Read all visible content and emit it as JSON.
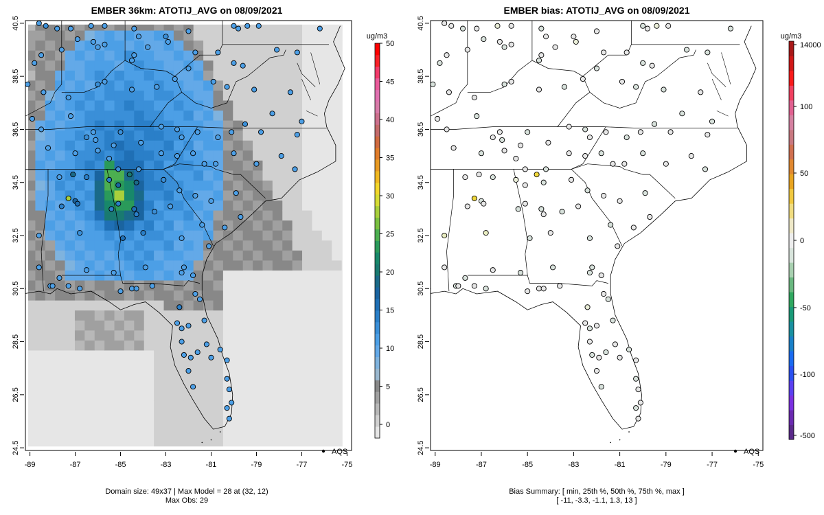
{
  "left_panel": {
    "title": "EMBER 36km: ATOTIJ_AVG on 08/09/2021",
    "footer_line1": "Domain size: 49x37 | Max Model = 28 at (32, 12)",
    "footer_line2": "Max Obs: 29",
    "legend_label": "AQS",
    "colorbar_unit": "ug/m3",
    "colorbar_ticks": [
      "0",
      "5",
      "10",
      "15",
      "20",
      "25",
      "30",
      "35",
      "40",
      "45",
      "50"
    ],
    "colorbar_ticks_values": [
      0,
      5,
      10,
      15,
      20,
      25,
      30,
      35,
      40,
      45,
      50
    ],
    "colorbar_colors": [
      "#e6e6e6",
      "#d0d0d0",
      "#b8b8b8",
      "#a0a0a0",
      "#888888",
      "#9ab8cf",
      "#7fb3de",
      "#63a9e8",
      "#4c9fe6",
      "#3a8fd8",
      "#2a7fc8",
      "#1f6fb5",
      "#1a64a0",
      "#1a6a88",
      "#197a70",
      "#18886a",
      "#2a9a5a",
      "#4caf50",
      "#7ac040",
      "#a8cf3c",
      "#d6dc34",
      "#f2d62a",
      "#f0b820",
      "#e89a22",
      "#e07c2a",
      "#d06a40",
      "#c46a6a",
      "#cc6f8c",
      "#d87aa8",
      "#e070b0",
      "#ea5a9a",
      "#f23a6a",
      "#f82028",
      "#ff0000"
    ],
    "x_ticks": [
      "-89",
      "-87",
      "-85",
      "-83",
      "-81",
      "-79",
      "-77",
      "-75"
    ],
    "y_ticks": [
      "40.5",
      "38.5",
      "36.5",
      "34.5",
      "32.5",
      "30.5",
      "28.5",
      "26.5",
      "24.5"
    ]
  },
  "right_panel": {
    "title": "EMBER bias: ATOTIJ_AVG on 08/09/2021",
    "footer_line1": "Bias Summary: [ min, 25th %, 50th %, 75th %, max ]",
    "footer_line2": "[ -11,   -3.3,   -1.1,   1.3,   13 ]",
    "legend_label": "AQS",
    "colorbar_unit": "ug/m3",
    "colorbar_ticks": [
      "-500",
      "-100",
      "-50",
      "0",
      "50",
      "100",
      "14000"
    ],
    "colorbar_colors": [
      "#5a2a8a",
      "#6a2ab0",
      "#7a30e0",
      "#5a40f0",
      "#2a50f0",
      "#1a6af0",
      "#1a80c8",
      "#1a90a0",
      "#1a9a78",
      "#30a860",
      "#6ab880",
      "#a8d0b0",
      "#d8e4dc",
      "#ededed",
      "#eee8c8",
      "#f0dc80",
      "#f0c840",
      "#e8a420",
      "#e08830",
      "#d07050",
      "#c87880",
      "#d480a0",
      "#e06090",
      "#f04060",
      "#f81a1a",
      "#d01818",
      "#a81818"
    ],
    "x_ticks": [
      "-89",
      "-87",
      "-85",
      "-83",
      "-81",
      "-79",
      "-77",
      "-75"
    ],
    "y_ticks": [
      "40.5",
      "38.5",
      "36.5",
      "34.5",
      "32.5",
      "30.5",
      "28.5",
      "26.5",
      "24.5"
    ]
  },
  "chart_data": {
    "type": "heatmap",
    "panels": [
      {
        "name": "EMBER 36km: ATOTIJ_AVG on 08/09/2021",
        "xlim": [
          -89.2,
          -74.8
        ],
        "ylim": [
          24.4,
          40.6
        ],
        "colorbar_range": [
          0,
          50
        ],
        "units": "ug/m3"
      },
      {
        "name": "EMBER bias: ATOTIJ_AVG on 08/09/2021",
        "xlim": [
          -89.2,
          -74.8
        ],
        "ylim": [
          24.4,
          40.6
        ],
        "units": "ug/m3",
        "bias_summary": {
          "min": -11,
          "p25": -3.3,
          "p50": -1.1,
          "p75": 1.3,
          "max": 13
        }
      }
    ],
    "domain_size": "49x37",
    "max_model": 28,
    "max_model_cell": [
      32,
      12
    ],
    "max_obs": 29,
    "sites": [
      [
        -88.6,
        40.5,
        12,
        -1
      ],
      [
        -88.3,
        40.4,
        14,
        1
      ],
      [
        -87.8,
        40.3,
        13,
        -2
      ],
      [
        -87.2,
        40.3,
        12,
        -1
      ],
      [
        -86.3,
        40.4,
        13,
        2
      ],
      [
        -85.7,
        40.4,
        12,
        -1
      ],
      [
        -84.4,
        40.3,
        13,
        -2
      ],
      [
        -84.2,
        40.0,
        12,
        -1
      ],
      [
        -83.0,
        40.0,
        14,
        1
      ],
      [
        -82.0,
        40.2,
        13,
        -1
      ],
      [
        -80.0,
        40.4,
        13,
        -2
      ],
      [
        -79.8,
        40.3,
        12,
        -1
      ],
      [
        -79.4,
        40.4,
        12,
        2
      ],
      [
        -78.9,
        40.4,
        13,
        1
      ],
      [
        -76.2,
        40.3,
        13,
        -3
      ],
      [
        -88.5,
        39.3,
        12,
        1
      ],
      [
        -88.8,
        39.0,
        12,
        -2
      ],
      [
        -87.6,
        39.5,
        13,
        -1
      ],
      [
        -86.9,
        39.9,
        12,
        -2
      ],
      [
        -86.2,
        39.8,
        13,
        -1
      ],
      [
        -86.0,
        39.6,
        12,
        -3
      ],
      [
        -85.7,
        39.7,
        13,
        -1
      ],
      [
        -84.5,
        39.1,
        12,
        -2
      ],
      [
        -84.4,
        39.3,
        13,
        -1
      ],
      [
        -83.8,
        39.6,
        12,
        -1
      ],
      [
        -82.9,
        39.8,
        13,
        2
      ],
      [
        -82.0,
        38.8,
        12,
        -2
      ],
      [
        -81.7,
        39.4,
        13,
        -1
      ],
      [
        -80.7,
        39.4,
        12,
        -1
      ],
      [
        -80.0,
        39.0,
        13,
        -2
      ],
      [
        -79.6,
        38.9,
        12,
        -1
      ],
      [
        -78.1,
        39.5,
        13,
        -3
      ],
      [
        -77.2,
        39.4,
        12,
        -2
      ],
      [
        -89.1,
        38.2,
        12,
        -2
      ],
      [
        -88.4,
        37.9,
        13,
        -1
      ],
      [
        -87.3,
        37.7,
        12,
        -1
      ],
      [
        -86.0,
        38.2,
        14,
        -2
      ],
      [
        -85.7,
        38.3,
        13,
        -1
      ],
      [
        -84.5,
        38.0,
        12,
        -1
      ],
      [
        -83.4,
        38.1,
        13,
        -2
      ],
      [
        -82.6,
        38.4,
        12,
        -1
      ],
      [
        -80.9,
        38.3,
        13,
        -1
      ],
      [
        -80.3,
        38.1,
        12,
        -3
      ],
      [
        -79.1,
        38.0,
        13,
        -2
      ],
      [
        -77.5,
        37.9,
        12,
        -1
      ],
      [
        -88.9,
        36.9,
        12,
        1
      ],
      [
        -88.5,
        36.5,
        13,
        -1
      ],
      [
        -87.2,
        37.0,
        12,
        -2
      ],
      [
        -86.5,
        36.2,
        14,
        -1
      ],
      [
        -86.1,
        36.1,
        13,
        -2
      ],
      [
        -86.2,
        36.4,
        13,
        -1
      ],
      [
        -85.3,
        35.9,
        12,
        -1
      ],
      [
        -85.0,
        36.4,
        14,
        -2
      ],
      [
        -84.1,
        36.0,
        13,
        -1
      ],
      [
        -83.2,
        36.6,
        12,
        -1
      ],
      [
        -82.5,
        36.5,
        13,
        -2
      ],
      [
        -82.3,
        36.2,
        12,
        -1
      ],
      [
        -81.6,
        36.4,
        13,
        -1
      ],
      [
        -80.7,
        36.2,
        12,
        -2
      ],
      [
        -80.1,
        36.4,
        13,
        -1
      ],
      [
        -79.5,
        36.7,
        14,
        -2
      ],
      [
        -78.8,
        36.4,
        13,
        -1
      ],
      [
        -78.3,
        37.1,
        12,
        -3
      ],
      [
        -77.0,
        36.8,
        13,
        -2
      ],
      [
        -77.2,
        36.3,
        12,
        -1
      ],
      [
        -88.2,
        35.8,
        13,
        -1
      ],
      [
        -87.0,
        35.6,
        12,
        -2
      ],
      [
        -86.0,
        35.7,
        13,
        -1
      ],
      [
        -85.5,
        35.4,
        12,
        -1
      ],
      [
        -85.1,
        35.0,
        14,
        -1
      ],
      [
        -84.2,
        35.0,
        13,
        -2
      ],
      [
        -83.2,
        35.6,
        12,
        -1
      ],
      [
        -82.5,
        35.5,
        13,
        -1
      ],
      [
        -81.8,
        35.6,
        12,
        -2
      ],
      [
        -81.3,
        35.2,
        13,
        -1
      ],
      [
        -80.8,
        35.2,
        12,
        -1
      ],
      [
        -80.0,
        35.6,
        13,
        -2
      ],
      [
        -79.0,
        35.2,
        12,
        -1
      ],
      [
        -77.9,
        35.5,
        13,
        -1
      ],
      [
        -77.3,
        35.0,
        12,
        -2
      ],
      [
        -87.7,
        34.7,
        13,
        1
      ],
      [
        -87.1,
        34.8,
        20,
        -1
      ],
      [
        -86.5,
        34.7,
        15,
        -2
      ],
      [
        -85.5,
        34.6,
        16,
        2
      ],
      [
        -85.1,
        34.4,
        18,
        1
      ],
      [
        -84.6,
        34.8,
        22,
        13
      ],
      [
        -84.3,
        34.5,
        20,
        -2
      ],
      [
        -83.1,
        34.6,
        14,
        -1
      ],
      [
        -82.4,
        34.2,
        13,
        -2
      ],
      [
        -81.7,
        34.0,
        12,
        -1
      ],
      [
        -81.0,
        33.8,
        13,
        -1
      ],
      [
        -79.9,
        34.1,
        12,
        -2
      ],
      [
        -79.7,
        33.2,
        13,
        -1
      ],
      [
        -87.6,
        33.6,
        16,
        -1
      ],
      [
        -87.3,
        33.9,
        29,
        10
      ],
      [
        -87.0,
        33.8,
        18,
        -3
      ],
      [
        -86.9,
        33.7,
        17,
        -1
      ],
      [
        -85.4,
        33.5,
        16,
        -2
      ],
      [
        -85.1,
        33.7,
        15,
        -1
      ],
      [
        -84.4,
        33.5,
        17,
        -2
      ],
      [
        -84.3,
        33.3,
        16,
        -1
      ],
      [
        -83.5,
        33.4,
        14,
        -3
      ],
      [
        -82.8,
        33.6,
        13,
        -1
      ],
      [
        -81.4,
        32.9,
        12,
        -2
      ],
      [
        -80.4,
        32.8,
        13,
        -1
      ],
      [
        -88.6,
        32.5,
        12,
        5
      ],
      [
        -86.8,
        32.6,
        14,
        4
      ],
      [
        -84.9,
        32.4,
        17,
        -2
      ],
      [
        -84.0,
        32.6,
        15,
        -1
      ],
      [
        -82.3,
        32.4,
        13,
        -2
      ],
      [
        -81.1,
        32.1,
        13,
        -1
      ],
      [
        -88.6,
        31.3,
        12,
        -1
      ],
      [
        -87.7,
        30.9,
        12,
        -2
      ],
      [
        -86.5,
        31.2,
        13,
        -1
      ],
      [
        -85.3,
        31.1,
        12,
        -2
      ],
      [
        -84.5,
        30.5,
        13,
        -1
      ],
      [
        -83.9,
        31.3,
        12,
        -2
      ],
      [
        -83.6,
        30.6,
        13,
        -1
      ],
      [
        -82.2,
        31.3,
        12,
        -3
      ],
      [
        -82.3,
        31.1,
        13,
        -2
      ],
      [
        -81.8,
        31.0,
        12,
        -1
      ],
      [
        -89.3,
        30.5,
        12,
        -1
      ],
      [
        -88.1,
        30.6,
        13,
        -2
      ],
      [
        -88.0,
        30.6,
        12,
        -1
      ],
      [
        -87.3,
        30.6,
        13,
        -1
      ],
      [
        -86.8,
        30.5,
        12,
        -2
      ],
      [
        -85.0,
        30.4,
        13,
        -1
      ],
      [
        -84.3,
        30.5,
        13,
        -1
      ],
      [
        -82.4,
        29.8,
        15,
        3
      ],
      [
        -81.7,
        30.3,
        12,
        -1
      ],
      [
        -81.5,
        30.1,
        13,
        -2
      ],
      [
        -82.5,
        29.2,
        12,
        -1
      ],
      [
        -82.3,
        29.0,
        12,
        -2
      ],
      [
        -82.0,
        29.1,
        13,
        -1
      ],
      [
        -81.3,
        29.3,
        12,
        -2
      ],
      [
        -82.3,
        28.5,
        13,
        -1
      ],
      [
        -82.2,
        28.0,
        13,
        -2
      ],
      [
        -81.9,
        27.9,
        12,
        -1
      ],
      [
        -81.6,
        28.1,
        13,
        -2
      ],
      [
        -81.2,
        28.4,
        12,
        -1
      ],
      [
        -81.0,
        27.9,
        13,
        -1
      ],
      [
        -80.6,
        28.2,
        12,
        -2
      ],
      [
        -82.0,
        27.4,
        12,
        -1
      ],
      [
        -81.8,
        26.8,
        13,
        -3
      ],
      [
        -80.3,
        27.8,
        12,
        -1
      ],
      [
        -80.3,
        27.1,
        13,
        -2
      ],
      [
        -80.2,
        26.7,
        12,
        -1
      ],
      [
        -80.1,
        26.2,
        13,
        -1
      ],
      [
        -80.3,
        26.0,
        12,
        -2
      ],
      [
        -80.2,
        25.6,
        13,
        -1
      ]
    ]
  }
}
